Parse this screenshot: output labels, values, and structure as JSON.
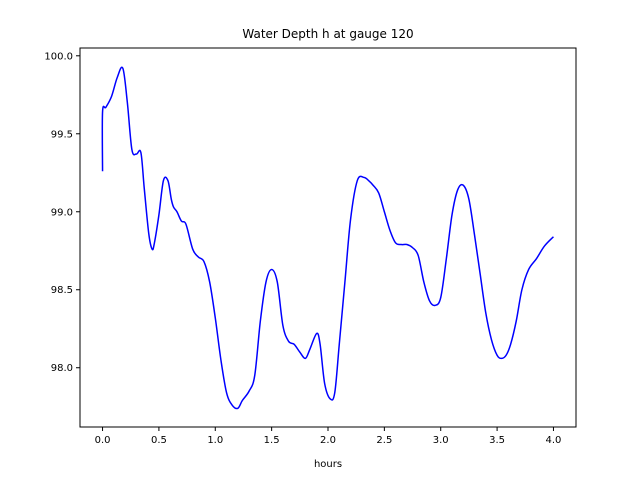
{
  "chart_data": {
    "type": "line",
    "title": "Water Depth h at gauge 120",
    "xlabel": "hours",
    "ylabel": "",
    "xlim": [
      -0.2,
      4.2
    ],
    "ylim": [
      97.62,
      100.05
    ],
    "xticks": [
      0.0,
      0.5,
      1.0,
      1.5,
      2.0,
      2.5,
      3.0,
      3.5,
      4.0
    ],
    "xtick_labels": [
      "0.0",
      "0.5",
      "1.0",
      "1.5",
      "2.0",
      "2.5",
      "3.0",
      "3.5",
      "4.0"
    ],
    "yticks": [
      98.0,
      98.5,
      99.0,
      99.5,
      100.0
    ],
    "ytick_labels": [
      "98.0",
      "98.5",
      "99.0",
      "99.5",
      "100.0"
    ],
    "grid": false,
    "series": [
      {
        "name": "",
        "color": "#0000ff",
        "x": [
          0.0,
          0.0,
          0.03,
          0.08,
          0.13,
          0.18,
          0.22,
          0.26,
          0.3,
          0.34,
          0.37,
          0.41,
          0.44,
          0.46,
          0.5,
          0.54,
          0.58,
          0.61,
          0.63,
          0.66,
          0.7,
          0.74,
          0.8,
          0.85,
          0.9,
          0.95,
          1.0,
          1.05,
          1.1,
          1.15,
          1.2,
          1.24,
          1.3,
          1.35,
          1.4,
          1.45,
          1.5,
          1.55,
          1.6,
          1.65,
          1.7,
          1.75,
          1.8,
          1.84,
          1.9,
          1.93,
          1.97,
          2.02,
          2.06,
          2.1,
          2.15,
          2.2,
          2.26,
          2.32,
          2.36,
          2.4,
          2.45,
          2.5,
          2.55,
          2.6,
          2.65,
          2.7,
          2.75,
          2.8,
          2.85,
          2.9,
          2.95,
          3.0,
          3.05,
          3.1,
          3.15,
          3.2,
          3.25,
          3.3,
          3.35,
          3.4,
          3.45,
          3.5,
          3.54,
          3.58,
          3.62,
          3.67,
          3.72,
          3.78,
          3.85,
          3.92,
          4.0
        ],
        "y": [
          99.26,
          99.64,
          99.67,
          99.74,
          99.86,
          99.92,
          99.7,
          99.4,
          99.37,
          99.38,
          99.15,
          98.86,
          98.76,
          98.8,
          98.98,
          99.2,
          99.2,
          99.08,
          99.03,
          99.0,
          98.94,
          98.92,
          98.76,
          98.71,
          98.68,
          98.55,
          98.32,
          98.05,
          97.84,
          97.76,
          97.74,
          97.79,
          97.85,
          97.95,
          98.3,
          98.55,
          98.63,
          98.55,
          98.27,
          98.17,
          98.15,
          98.1,
          98.06,
          98.12,
          98.22,
          98.15,
          97.9,
          97.8,
          97.84,
          98.15,
          98.55,
          98.95,
          99.2,
          99.22,
          99.2,
          99.17,
          99.12,
          99.0,
          98.88,
          98.8,
          98.79,
          98.79,
          98.77,
          98.72,
          98.55,
          98.43,
          98.4,
          98.45,
          98.7,
          98.98,
          99.14,
          99.17,
          99.08,
          98.85,
          98.6,
          98.35,
          98.18,
          98.08,
          98.06,
          98.08,
          98.15,
          98.3,
          98.5,
          98.63,
          98.7,
          98.78,
          98.84
        ]
      }
    ]
  }
}
